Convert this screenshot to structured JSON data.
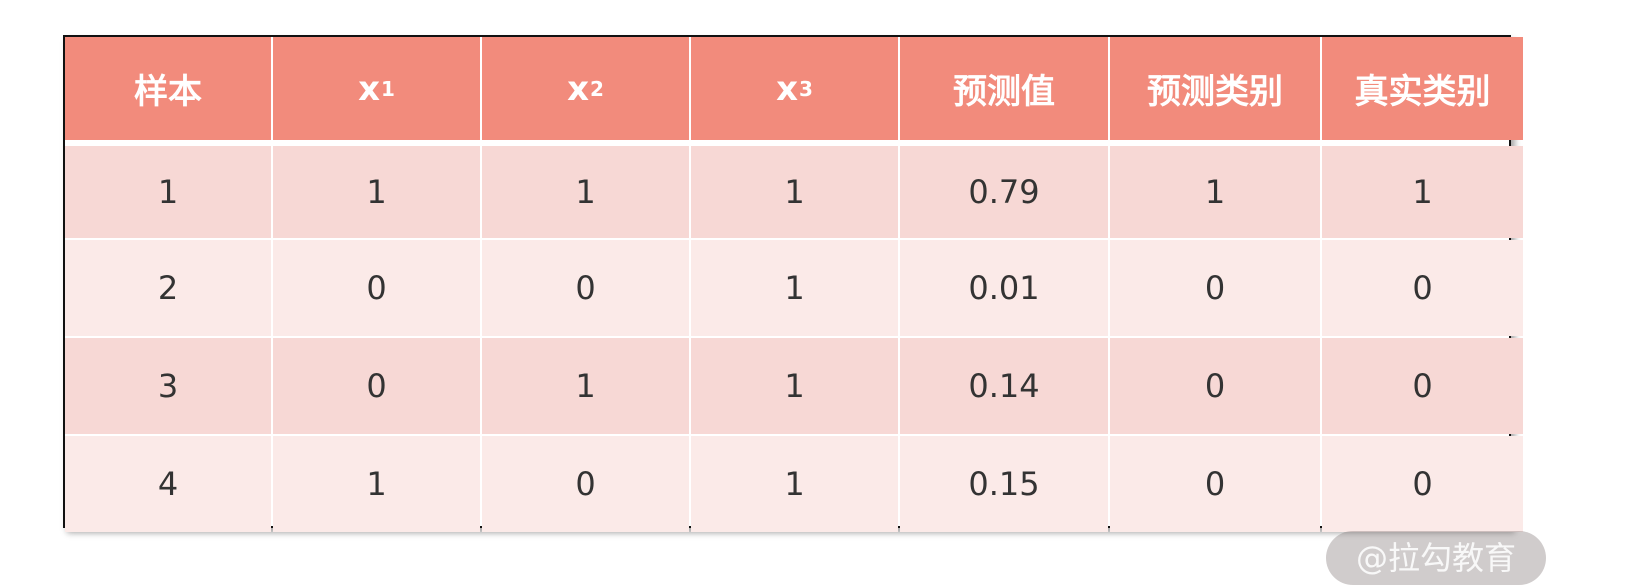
{
  "table": {
    "headers": [
      {
        "text": "样本",
        "sub": ""
      },
      {
        "text": "x",
        "sub": "1"
      },
      {
        "text": "x",
        "sub": "2"
      },
      {
        "text": "x",
        "sub": "3"
      },
      {
        "text": "预测值",
        "sub": ""
      },
      {
        "text": "预测类别",
        "sub": ""
      },
      {
        "text": "真实类别",
        "sub": ""
      }
    ],
    "rows": [
      [
        "1",
        "1",
        "1",
        "1",
        "0.79",
        "1",
        "1"
      ],
      [
        "2",
        "0",
        "0",
        "1",
        "0.01",
        "0",
        "0"
      ],
      [
        "3",
        "0",
        "1",
        "1",
        "0.14",
        "0",
        "0"
      ],
      [
        "4",
        "1",
        "0",
        "1",
        "0.15",
        "0",
        "0"
      ]
    ]
  },
  "watermark": "@拉勾教育",
  "colors": {
    "header": "#f28b7c",
    "row_odd": "#f7d8d5",
    "row_even": "#fbeae8"
  }
}
